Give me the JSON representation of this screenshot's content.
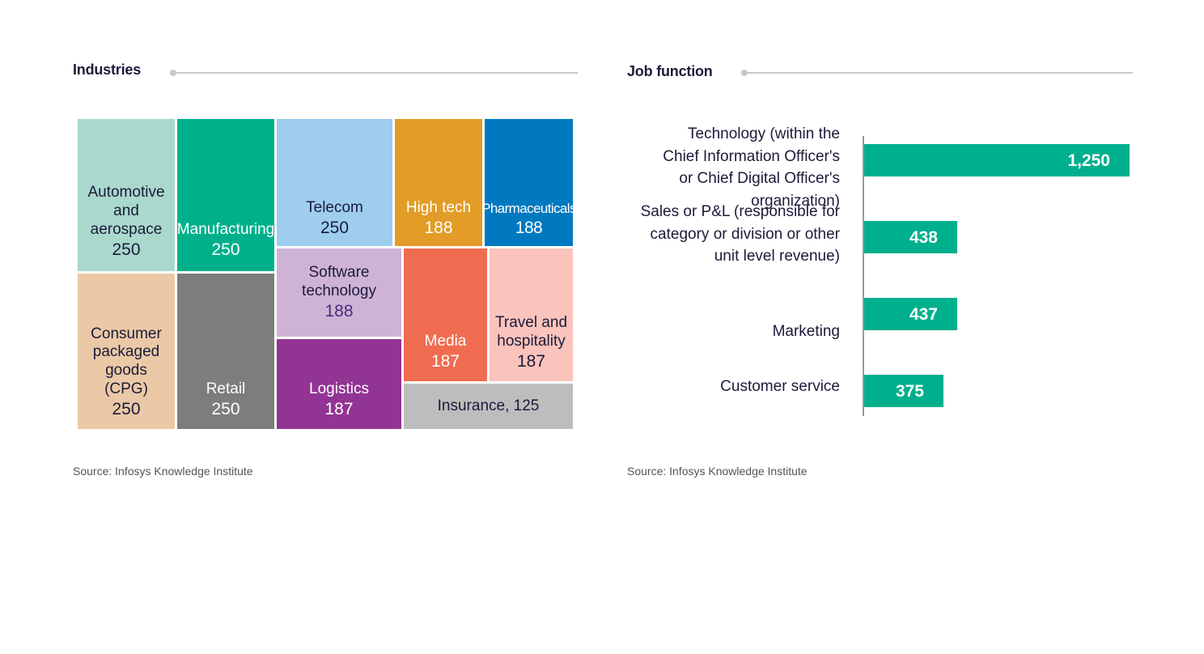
{
  "chart_data": [
    {
      "type": "treemap",
      "title": "Industries",
      "source": "Source: Infosys Knowledge Institute",
      "items": [
        {
          "name": "Automotive\nand\naerospace",
          "value": 250,
          "value_label": "250",
          "color": "#a9d8cd",
          "text_color": "#1b1b3a"
        },
        {
          "name": "Manufacturing",
          "value": 250,
          "value_label": "250",
          "color": "#00b08b",
          "text_color": "#ffffff"
        },
        {
          "name": "Consumer\npackaged\ngoods\n(CPG)",
          "value": 250,
          "value_label": "250",
          "color": "#ebc9a6",
          "text_color": "#1b1b3a"
        },
        {
          "name": "Retail",
          "value": 250,
          "value_label": "250",
          "color": "#7d7e7c",
          "text_color": "#ffffff"
        },
        {
          "name": "Telecom",
          "value": 250,
          "value_label": "250",
          "color": "#9ecdee",
          "text_color": "#1b1b3a"
        },
        {
          "name": "High tech",
          "value": 188,
          "value_label": "188",
          "color": "#e29c27",
          "text_color": "#ffffff"
        },
        {
          "name": "Pharmaceuticals",
          "value": 188,
          "value_label": "188",
          "color": "#0079c1",
          "text_color": "#ffffff"
        },
        {
          "name": "Software\ntechnology",
          "value": 188,
          "value_label": "188",
          "color": "#cfb3d6",
          "text_color": "#1b1b3a"
        },
        {
          "name": "Logistics",
          "value": 187,
          "value_label": "187",
          "color": "#923494",
          "text_color": "#ffffff"
        },
        {
          "name": "Media",
          "value": 187,
          "value_label": "187",
          "color": "#f06c50",
          "text_color": "#ffffff"
        },
        {
          "name": "Travel and\nhospitality",
          "value": 187,
          "value_label": "187",
          "color": "#fac3bc",
          "text_color": "#1b1b3a"
        },
        {
          "name": "Insurance, 125",
          "value": 125,
          "value_label": "",
          "color": "#bdbdbd",
          "text_color": "#1b1b3a"
        }
      ]
    },
    {
      "type": "bar",
      "orientation": "horizontal",
      "title": "Job function",
      "source": "Source: Infosys Knowledge Institute",
      "color": "#00af8c",
      "xlim": [
        0,
        1250
      ],
      "categories": [
        "Technology (within the Chief Information Officer's or Chief Digital Officer's organization)",
        "Sales or P&L (responsible for category or division or other unit level revenue)",
        "Marketing",
        "Customer service"
      ],
      "values": [
        1250,
        438,
        437,
        375
      ],
      "value_labels": [
        "1,250",
        "438",
        "437",
        "375"
      ]
    }
  ]
}
